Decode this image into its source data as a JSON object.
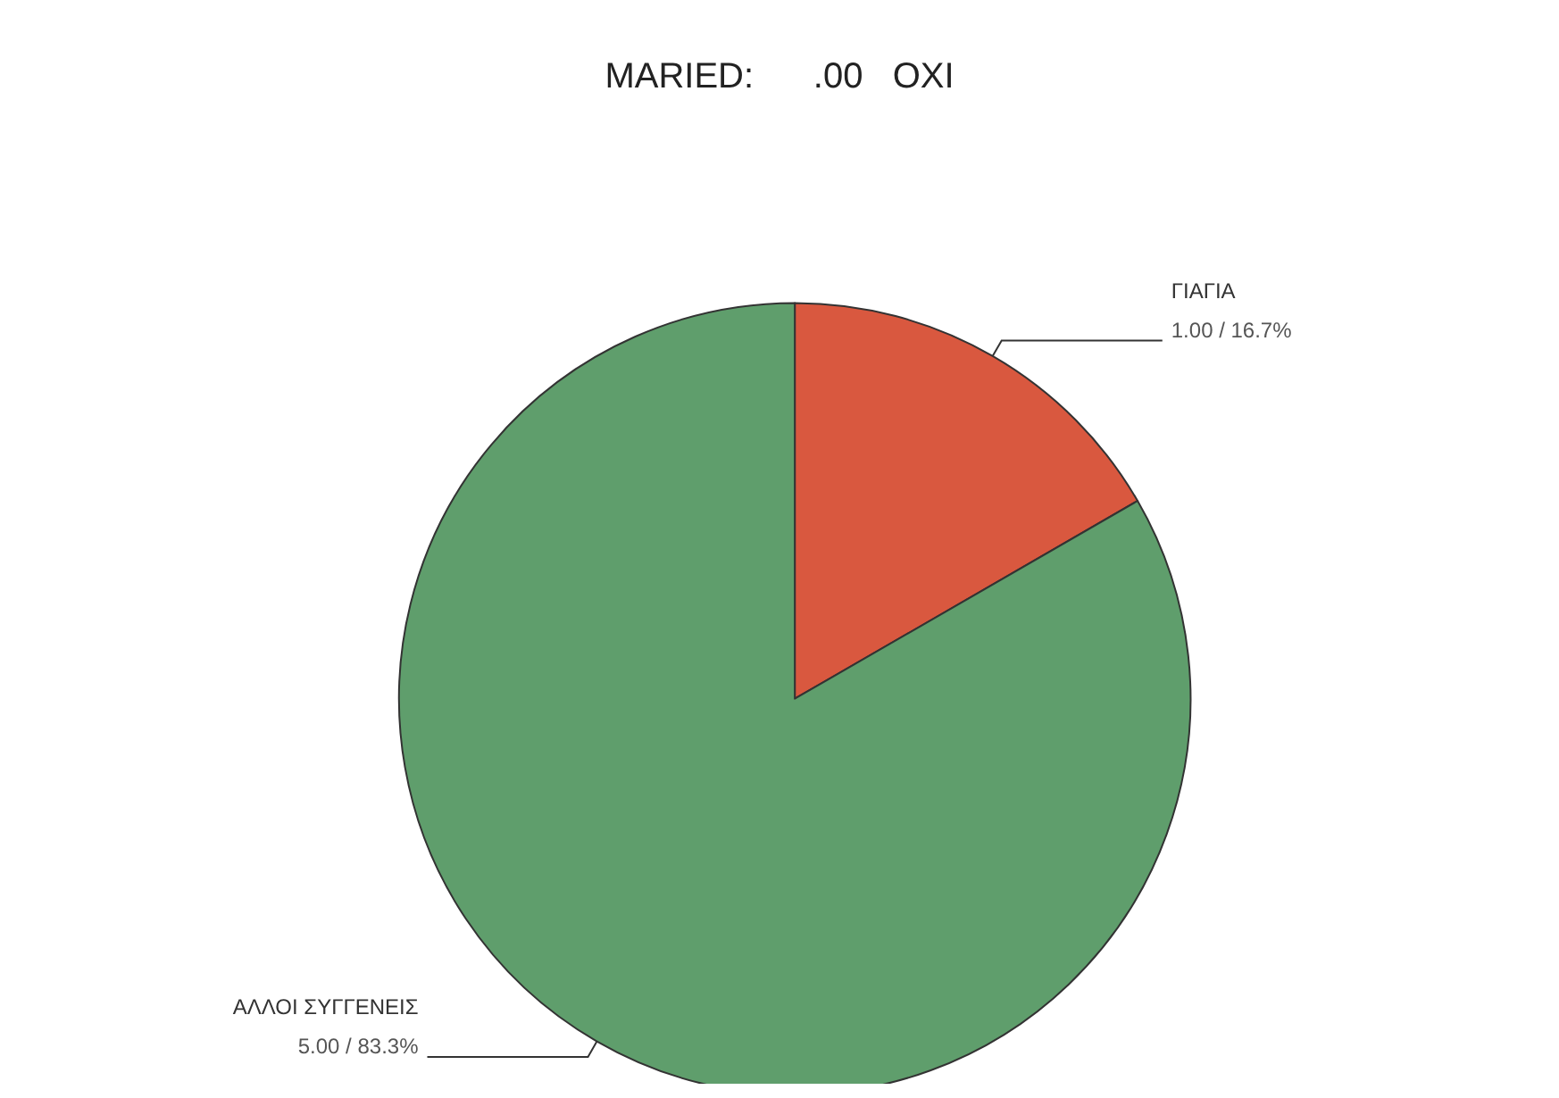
{
  "chart_data": {
    "type": "pie",
    "title": "MARIED:      .00   OXI",
    "categories": [
      "ΓΙΑΓΙΑ",
      "ΑΛΛΟΙ ΣΥΓΓΕΝΕΙΣ"
    ],
    "values": [
      1,
      5
    ],
    "value_labels": [
      "1.00 / 16.7%",
      "5.00 / 83.3%"
    ],
    "colors": [
      "#d9583f",
      "#5f9e6c"
    ]
  }
}
